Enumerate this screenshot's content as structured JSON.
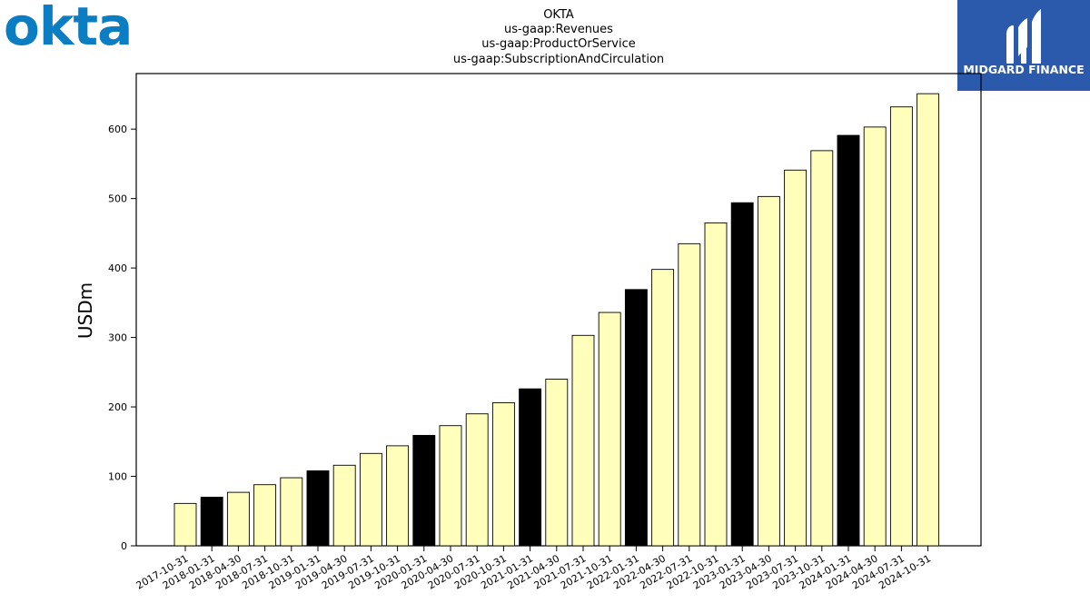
{
  "logos": {
    "left_text": "okta",
    "right_text": "MIDGARD FINANCE",
    "left_color": "#0b7dc3",
    "right_bg": "#2b5aad"
  },
  "colors": {
    "bar_default": "#ffffbb",
    "bar_highlight": "#000000",
    "bar_edge": "#000000"
  },
  "chart_data": {
    "type": "bar",
    "title_lines": [
      "OKTA",
      "us-gaap:Revenues",
      "us-gaap:ProductOrService",
      "us-gaap:SubscriptionAndCirculation"
    ],
    "ylabel": "USDm",
    "xlabel": "",
    "ylim": [
      0,
      680
    ],
    "yticks": [
      0,
      100,
      200,
      300,
      400,
      500,
      600
    ],
    "grid": false,
    "categories": [
      "2017-10-31",
      "2018-01-31",
      "2018-04-30",
      "2018-07-31",
      "2018-10-31",
      "2019-01-31",
      "2019-04-30",
      "2019-07-31",
      "2019-10-31",
      "2020-01-31",
      "2020-04-30",
      "2020-07-31",
      "2020-10-31",
      "2021-01-31",
      "2021-04-30",
      "2021-07-31",
      "2021-10-31",
      "2022-01-31",
      "2022-04-30",
      "2022-07-31",
      "2022-10-31",
      "2023-01-31",
      "2023-04-30",
      "2023-07-31",
      "2023-10-31",
      "2024-01-31",
      "2024-04-30",
      "2024-07-31",
      "2024-10-31"
    ],
    "values": [
      61,
      70,
      77,
      88,
      98,
      108,
      116,
      133,
      144,
      159,
      173,
      190,
      206,
      226,
      240,
      303,
      336,
      369,
      398,
      435,
      465,
      494,
      503,
      541,
      569,
      591,
      603,
      632,
      651
    ],
    "highlight": [
      false,
      true,
      false,
      false,
      false,
      true,
      false,
      false,
      false,
      true,
      false,
      false,
      false,
      true,
      false,
      false,
      false,
      true,
      false,
      false,
      false,
      true,
      false,
      false,
      false,
      true,
      false,
      false,
      false
    ]
  }
}
